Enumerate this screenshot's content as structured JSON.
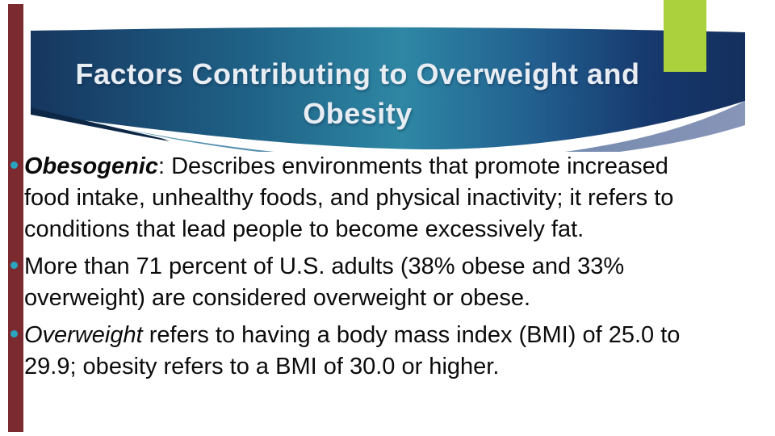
{
  "slide": {
    "title": {
      "line1": "Factors Contributing to Overweight and",
      "line2": "Obesity"
    },
    "bullets": [
      {
        "lines": [
          [
            {
              "text": "Obesogenic",
              "style": "bold-italic"
            },
            {
              "text": ": Describes environments that promote increased",
              "style": "normal"
            }
          ],
          [
            {
              "text": "food intake, unhealthy foods, and physical inactivity; it refers to",
              "style": "normal"
            }
          ],
          [
            {
              "text": "conditions that lead people to become excessively fat.",
              "style": "normal"
            }
          ]
        ]
      },
      {
        "lines": [
          [
            {
              "text": "More than 71 percent of U.S. adults (38% obese and 33%",
              "style": "normal"
            }
          ],
          [
            {
              "text": "overweight) are considered overweight or obese.",
              "style": "normal"
            }
          ]
        ]
      },
      {
        "lines": [
          [
            {
              "text": "Overweight",
              "style": "italic"
            },
            {
              "text": " refers to having a body mass index (BMI) of 25.0 to",
              "style": "normal"
            }
          ],
          [
            {
              "text": "29.9; obesity refers to a BMI of 30.0 or higher.",
              "style": "normal"
            }
          ]
        ]
      }
    ],
    "colors": {
      "background": "#ffffff",
      "banner_navy": "#16365f",
      "banner_teal": "#2e87a4",
      "banner_right_navy": "#132f5d",
      "banner_underside_teal": "#4a97b1",
      "banner_underside_steel": "#8795b8",
      "banner_dark_wedge": "#0d2846",
      "accent_green": "#abd13c",
      "accent_maroon": "#7b2a30",
      "bullet_dot": "#2aa4bf",
      "title_text": "#e8edf4",
      "body_text": "#0b0b0b"
    }
  }
}
